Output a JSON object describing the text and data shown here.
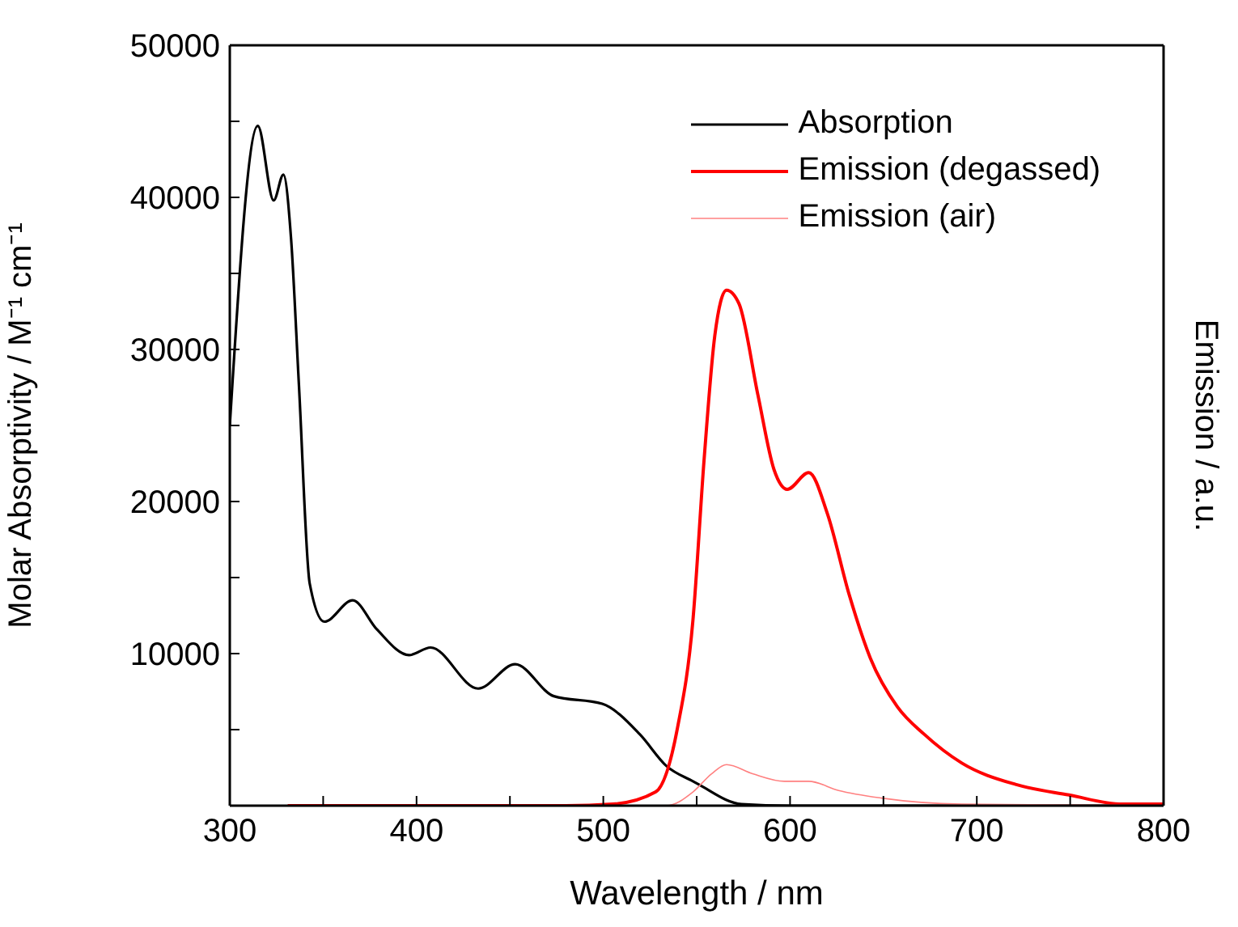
{
  "chart_data": {
    "type": "line",
    "xlabel": "Wavelength / nm",
    "ylabel": "Molar Absorptivity / M⁻¹ cm⁻¹",
    "y2label": "Emission / a.u.",
    "xlim": [
      300,
      800
    ],
    "xticks": [
      300,
      {
        "value": 350,
        "label": null
      },
      400,
      {
        "value": 450,
        "label": null
      },
      500,
      {
        "value": 550,
        "label": null
      },
      600,
      {
        "value": 650,
        "label": null
      },
      700,
      {
        "value": 750,
        "label": null
      },
      800
    ],
    "ylim": [
      0,
      50000
    ],
    "yticks": [
      {
        "value": 0,
        "label": null
      },
      {
        "value": 5000,
        "label": null
      },
      10000,
      {
        "value": 15000,
        "label": null
      },
      20000,
      {
        "value": 25000,
        "label": null
      },
      30000,
      {
        "value": 35000,
        "label": null
      },
      40000,
      {
        "value": 45000,
        "label": null
      },
      50000
    ],
    "grid": false,
    "legend": "top right",
    "marker": "none",
    "line_style": "solid",
    "series": [
      {
        "name": "Absorption",
        "color": "#000000",
        "x": [
          300,
          315,
          323.5,
          328.7,
          332.8,
          337,
          342.8,
          350.6,
          365.8,
          378.7,
          396,
          407.5,
          433,
          452.8,
          473.5,
          499.4,
          519.5,
          533.9,
          548,
          551,
          574,
          600,
          800
        ],
        "values": [
          25000,
          44700,
          39800,
          41500,
          37300,
          27700,
          14600,
          12100,
          13500,
          11600,
          9900,
          10400,
          7700,
          9300,
          7200,
          6700,
          4700,
          2600,
          1600,
          1400,
          100,
          0,
          0
        ]
      },
      {
        "name": "Emission (degassed)",
        "color": "#ff0000",
        "x": [
          331,
          480,
          505,
          528,
          539.7,
          548,
          554,
          559.7,
          566,
          572.7,
          582.8,
          591.4,
          598.5,
          610,
          620,
          631.6,
          643,
          657.5,
          671.8,
          692,
          720.7,
          749.4,
          778,
          800
        ],
        "values": [
          0,
          0,
          100,
          900,
          5100,
          12200,
          22800,
          30900,
          33900,
          33000,
          27000,
          22100,
          20800,
          21900,
          19200,
          13900,
          9700,
          6500,
          4700,
          2800,
          1400,
          700,
          100,
          100
        ]
      },
      {
        "name": "Emission (air)",
        "color": "#ff8080",
        "x": [
          520,
          533.9,
          548,
          558,
          566,
          579.9,
          597,
          610,
          626,
          649,
          692,
          800
        ],
        "values": [
          0,
          0,
          900,
          2100,
          2700,
          2100,
          1600,
          1600,
          1000,
          500,
          100,
          0
        ]
      }
    ]
  }
}
